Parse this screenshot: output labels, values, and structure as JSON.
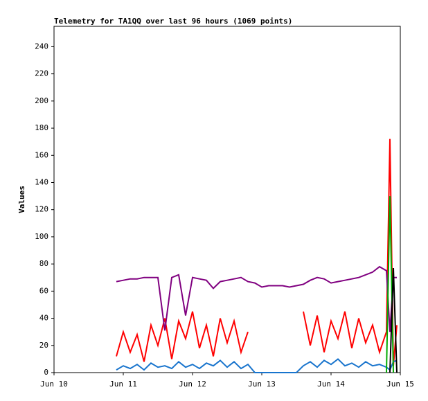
{
  "chart_data": {
    "type": "line",
    "title": "Telemetry for TA1QQ over last 96 hours (1069 points)",
    "y_label": "Values",
    "x": [
      0.9,
      1.0,
      1.1,
      1.2,
      1.3,
      1.4,
      1.5,
      1.6,
      1.7,
      1.8,
      1.9,
      2.0,
      2.1,
      2.2,
      2.3,
      2.4,
      2.5,
      2.6,
      2.7,
      2.8,
      2.9,
      3.0,
      3.1,
      3.2,
      3.3,
      3.4,
      3.5,
      3.6,
      3.7,
      3.8,
      3.9,
      4.0,
      4.1,
      4.2,
      4.3,
      4.4,
      4.5,
      4.6,
      4.7,
      4.8,
      4.85,
      4.9,
      4.95
    ],
    "xlim": [
      0,
      5
    ],
    "xticks": [
      {
        "value": 0,
        "label": "Jun 10"
      },
      {
        "value": 1,
        "label": "Jun 11"
      },
      {
        "value": 2,
        "label": "Jun 12"
      },
      {
        "value": 3,
        "label": "Jun 13"
      },
      {
        "value": 4,
        "label": "Jun 14"
      },
      {
        "value": 5,
        "label": "Jun 15"
      }
    ],
    "ylim": [
      0,
      255
    ],
    "yticks": [
      0,
      20,
      40,
      60,
      80,
      100,
      120,
      140,
      160,
      180,
      200,
      220,
      240
    ],
    "series": [
      {
        "color": "#ff0000",
        "values": [
          12,
          30,
          15,
          28,
          8,
          35,
          20,
          40,
          10,
          38,
          25,
          45,
          18,
          35,
          12,
          40,
          22,
          38,
          15,
          30,
          null,
          null,
          null,
          null,
          null,
          null,
          null,
          45,
          20,
          42,
          15,
          38,
          25,
          45,
          18,
          40,
          22,
          35,
          15,
          30,
          172,
          5,
          35
        ]
      },
      {
        "color": "#1874cd",
        "values": [
          2,
          5,
          3,
          6,
          2,
          7,
          4,
          5,
          3,
          8,
          4,
          6,
          3,
          7,
          5,
          9,
          4,
          8,
          3,
          6,
          0,
          0,
          0,
          0,
          0,
          0,
          0,
          5,
          8,
          4,
          9,
          6,
          10,
          5,
          7,
          4,
          8,
          5,
          6,
          4,
          2,
          8,
          9
        ]
      },
      {
        "color": "#800080",
        "values": [
          67,
          68,
          69,
          69,
          70,
          70,
          70,
          31,
          70,
          72,
          42,
          70,
          69,
          68,
          62,
          67,
          68,
          69,
          70,
          67,
          66,
          63,
          64,
          64,
          64,
          63,
          64,
          65,
          68,
          70,
          69,
          66,
          67,
          68,
          69,
          70,
          72,
          74,
          78,
          75,
          30,
          70,
          70
        ]
      },
      {
        "color": "#00aa00",
        "values": [
          null,
          null,
          null,
          null,
          null,
          null,
          null,
          null,
          null,
          null,
          null,
          null,
          null,
          null,
          null,
          null,
          null,
          null,
          null,
          null,
          null,
          null,
          null,
          null,
          null,
          null,
          null,
          null,
          null,
          null,
          null,
          null,
          null,
          null,
          null,
          null,
          null,
          null,
          null,
          0,
          130,
          0,
          null
        ]
      },
      {
        "color": "#000000",
        "values": [
          null,
          null,
          null,
          null,
          null,
          null,
          null,
          null,
          null,
          null,
          null,
          null,
          null,
          null,
          null,
          null,
          null,
          null,
          null,
          null,
          null,
          null,
          null,
          null,
          null,
          null,
          null,
          null,
          null,
          null,
          null,
          null,
          null,
          null,
          null,
          null,
          null,
          null,
          null,
          null,
          0,
          77,
          0
        ]
      }
    ]
  }
}
